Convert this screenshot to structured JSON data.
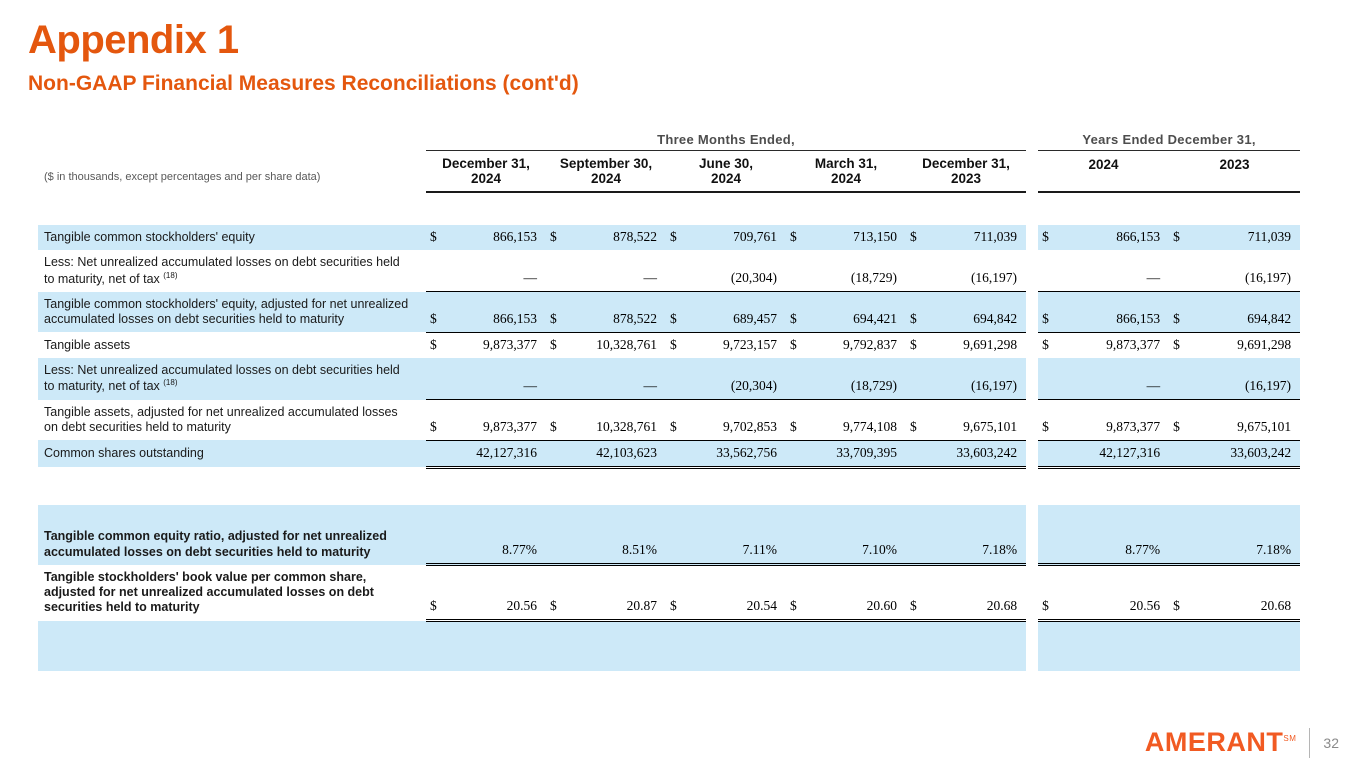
{
  "colors": {
    "accent": "#E4570E",
    "logo_orange": "#F15A22",
    "row_shade": "#CDE9F8"
  },
  "header": {
    "title": "Appendix 1",
    "subtitle": "Non-GAAP Financial Measures Reconciliations (cont'd)"
  },
  "table": {
    "note": "($ in thousands, except percentages and per share data)",
    "groups": [
      {
        "label": "Three Months Ended,",
        "span": 5
      },
      {
        "label": "Years Ended December 31,",
        "span": 2
      }
    ],
    "columns": [
      "December 31,\n2024",
      "September 30,\n2024",
      "June 30,\n2024",
      "March 31,\n2024",
      "December 31,\n2023",
      "2024",
      "2023"
    ],
    "rows": [
      {
        "type": "gap",
        "height": 33
      },
      {
        "label": "Tangible common stockholders' equity",
        "shade": true,
        "bold": false,
        "rule": "none",
        "cells": [
          [
            "$",
            "866,153"
          ],
          [
            "$",
            "878,522"
          ],
          [
            "$",
            "709,761"
          ],
          [
            "$",
            "713,150"
          ],
          [
            "$",
            "711,039"
          ],
          [
            "$",
            "866,153"
          ],
          [
            "$",
            "711,039"
          ]
        ]
      },
      {
        "label": "Less: Net unrealized accumulated losses on debt securities held to maturity, net of tax ",
        "sup": "(18)",
        "shade": false,
        "bold": false,
        "rule": "single",
        "cells": [
          [
            "",
            "—"
          ],
          [
            "",
            "—"
          ],
          [
            "",
            "(20,304)"
          ],
          [
            "",
            "(18,729)"
          ],
          [
            "",
            "(16,197)"
          ],
          [
            "",
            "—"
          ],
          [
            "",
            "(16,197)"
          ]
        ]
      },
      {
        "label": "Tangible common stockholders' equity, adjusted for net unrealized accumulated losses on debt securities held to maturity",
        "shade": true,
        "bold": false,
        "rule": "single",
        "cells": [
          [
            "$",
            "866,153"
          ],
          [
            "$",
            "878,522"
          ],
          [
            "$",
            "689,457"
          ],
          [
            "$",
            "694,421"
          ],
          [
            "$",
            "694,842"
          ],
          [
            "$",
            "866,153"
          ],
          [
            "$",
            "694,842"
          ]
        ]
      },
      {
        "label": "Tangible assets",
        "shade": false,
        "bold": false,
        "rule": "none",
        "cells": [
          [
            "$",
            "9,873,377"
          ],
          [
            "$",
            "10,328,761"
          ],
          [
            "$",
            "9,723,157"
          ],
          [
            "$",
            "9,792,837"
          ],
          [
            "$",
            "9,691,298"
          ],
          [
            "$",
            "9,873,377"
          ],
          [
            "$",
            "9,691,298"
          ]
        ]
      },
      {
        "label": "Less: Net unrealized accumulated losses on debt securities held to maturity, net of tax ",
        "sup": "(18)",
        "shade": true,
        "bold": false,
        "rule": "single",
        "cells": [
          [
            "",
            "—"
          ],
          [
            "",
            "—"
          ],
          [
            "",
            "(20,304)"
          ],
          [
            "",
            "(18,729)"
          ],
          [
            "",
            "(16,197)"
          ],
          [
            "",
            "—"
          ],
          [
            "",
            "(16,197)"
          ]
        ]
      },
      {
        "label": "Tangible assets, adjusted for net unrealized accumulated losses on debt securities held to maturity",
        "shade": false,
        "bold": false,
        "rule": "single",
        "cells": [
          [
            "$",
            "9,873,377"
          ],
          [
            "$",
            "10,328,761"
          ],
          [
            "$",
            "9,702,853"
          ],
          [
            "$",
            "9,774,108"
          ],
          [
            "$",
            "9,675,101"
          ],
          [
            "$",
            "9,873,377"
          ],
          [
            "$",
            "9,675,101"
          ]
        ]
      },
      {
        "label": "Common shares outstanding",
        "shade": true,
        "bold": false,
        "rule": "double",
        "cells": [
          [
            "",
            "42,127,316"
          ],
          [
            "",
            "42,103,623"
          ],
          [
            "",
            "33,562,756"
          ],
          [
            "",
            "33,709,395"
          ],
          [
            "",
            "33,603,242"
          ],
          [
            "",
            "42,127,316"
          ],
          [
            "",
            "33,603,242"
          ]
        ]
      },
      {
        "type": "gap",
        "height": 38
      },
      {
        "label": "Tangible common equity ratio, adjusted for net unrealized accumulated losses on debt securities held to maturity",
        "shade": true,
        "bold": true,
        "rule": "double",
        "padTop": 24,
        "cells": [
          [
            "",
            "8.77%"
          ],
          [
            "",
            "8.51%"
          ],
          [
            "",
            "7.11%"
          ],
          [
            "",
            "7.10%"
          ],
          [
            "",
            "7.18%"
          ],
          [
            "",
            "8.77%"
          ],
          [
            "",
            "7.18%"
          ]
        ]
      },
      {
        "label": "Tangible stockholders' book value per common share, adjusted for net unrealized accumulated losses on debt securities held to maturity",
        "shade": false,
        "bold": true,
        "rule": "double",
        "cells": [
          [
            "$",
            "20.56"
          ],
          [
            "$",
            "20.87"
          ],
          [
            "$",
            "20.54"
          ],
          [
            "$",
            "20.60"
          ],
          [
            "$",
            "20.68"
          ],
          [
            "$",
            "20.56"
          ],
          [
            "$",
            "20.68"
          ]
        ]
      },
      {
        "type": "empty",
        "shade": true,
        "height": 50
      }
    ]
  },
  "footer": {
    "brand": "AMERANT",
    "brand_mark": "SM",
    "page": "32"
  }
}
